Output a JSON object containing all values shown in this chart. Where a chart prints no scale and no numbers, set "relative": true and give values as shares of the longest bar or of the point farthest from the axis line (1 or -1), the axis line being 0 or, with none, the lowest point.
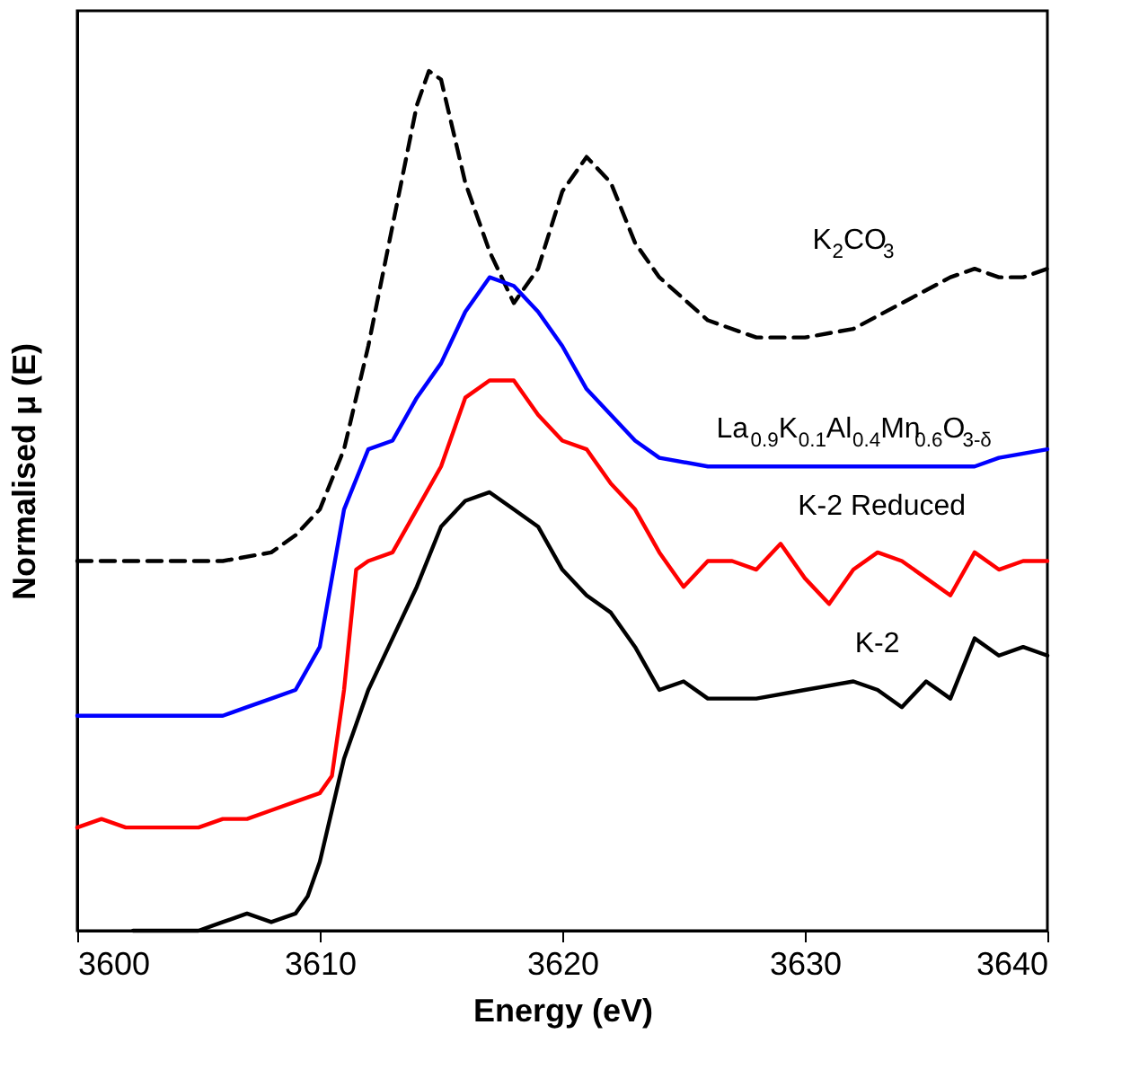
{
  "chart_data": {
    "type": "line",
    "relative": true,
    "xlabel": "Energy (eV)",
    "ylabel": "Normalised μ (E)",
    "xlim": [
      3600,
      3640
    ],
    "xticks": [
      3600,
      3610,
      3620,
      3630,
      3640
    ],
    "grid": false,
    "marker": "none",
    "series": [
      {
        "color": "#000000",
        "line_style": "dashed",
        "x": [
          3600,
          3606,
          3608,
          3609,
          3610,
          3611,
          3612,
          3613,
          3614,
          3614.5,
          3615,
          3616,
          3617,
          3618,
          3619,
          3620,
          3621,
          3622,
          3623,
          3624,
          3626,
          3628,
          3630,
          3632,
          3634,
          3636,
          3637,
          3638,
          3639,
          3640
        ],
        "values": [
          0.43,
          0.43,
          0.44,
          0.46,
          0.49,
          0.56,
          0.68,
          0.82,
          0.96,
          1.0,
          0.99,
          0.87,
          0.79,
          0.73,
          0.77,
          0.86,
          0.9,
          0.87,
          0.8,
          0.76,
          0.71,
          0.69,
          0.69,
          0.7,
          0.73,
          0.76,
          0.77,
          0.76,
          0.76,
          0.77
        ]
      },
      {
        "color": "#0000ff",
        "line_style": "solid",
        "x": [
          3600,
          3604,
          3606,
          3607,
          3608,
          3609,
          3610,
          3611,
          3612,
          3613,
          3614,
          3615,
          3616,
          3617,
          3618,
          3619,
          3620,
          3621,
          3622,
          3623,
          3624,
          3626,
          3628,
          3630,
          3632,
          3634,
          3636,
          3637,
          3638,
          3640
        ],
        "values": [
          0.25,
          0.25,
          0.25,
          0.26,
          0.27,
          0.28,
          0.33,
          0.49,
          0.56,
          0.57,
          0.62,
          0.66,
          0.72,
          0.76,
          0.75,
          0.72,
          0.68,
          0.63,
          0.6,
          0.57,
          0.55,
          0.54,
          0.54,
          0.54,
          0.54,
          0.54,
          0.54,
          0.54,
          0.55,
          0.56
        ]
      },
      {
        "color": "#ff0000",
        "line_style": "solid",
        "x": [
          3600,
          3601,
          3602,
          3603,
          3604,
          3605,
          3606,
          3607,
          3608,
          3609,
          3610,
          3610.5,
          3611,
          3611.5,
          3612,
          3613,
          3614,
          3615,
          3616,
          3617,
          3618,
          3619,
          3620,
          3621,
          3622,
          3623,
          3624,
          3625,
          3626,
          3627,
          3628,
          3629,
          3630,
          3631,
          3632,
          3633,
          3634,
          3635,
          3636,
          3637,
          3638,
          3639,
          3640
        ],
        "values": [
          0.12,
          0.13,
          0.12,
          0.12,
          0.12,
          0.12,
          0.13,
          0.13,
          0.14,
          0.15,
          0.16,
          0.18,
          0.28,
          0.42,
          0.43,
          0.44,
          0.49,
          0.54,
          0.62,
          0.64,
          0.64,
          0.6,
          0.57,
          0.56,
          0.52,
          0.49,
          0.44,
          0.4,
          0.43,
          0.43,
          0.42,
          0.45,
          0.41,
          0.38,
          0.42,
          0.44,
          0.43,
          0.41,
          0.39,
          0.44,
          0.42,
          0.43,
          0.43
        ]
      },
      {
        "color": "#000000",
        "line_style": "solid",
        "x": [
          3602.3,
          3603,
          3604,
          3605,
          3606,
          3607,
          3608,
          3609,
          3609.5,
          3610,
          3611,
          3612,
          3613,
          3614,
          3615,
          3616,
          3617,
          3618,
          3619,
          3620,
          3621,
          3622,
          3623,
          3624,
          3625,
          3626,
          3628,
          3630,
          3632,
          3633,
          3634,
          3635,
          3636,
          3637,
          3638,
          3639,
          3640
        ],
        "values": [
          0.0,
          0.0,
          0.0,
          0.0,
          0.01,
          0.02,
          0.01,
          0.02,
          0.04,
          0.08,
          0.2,
          0.28,
          0.34,
          0.4,
          0.47,
          0.5,
          0.51,
          0.49,
          0.47,
          0.42,
          0.39,
          0.37,
          0.33,
          0.28,
          0.29,
          0.27,
          0.27,
          0.28,
          0.29,
          0.28,
          0.26,
          0.29,
          0.27,
          0.34,
          0.32,
          0.33,
          0.32
        ]
      }
    ],
    "annotations": [
      "K$_{2}$CO$_{3}$",
      "La$_{0.9}$K$_{0.1}$Al$_{0.4}$Mn$_{0.6}$O$_{3-δ}$",
      "K-2 Reduced",
      "K-2"
    ]
  }
}
